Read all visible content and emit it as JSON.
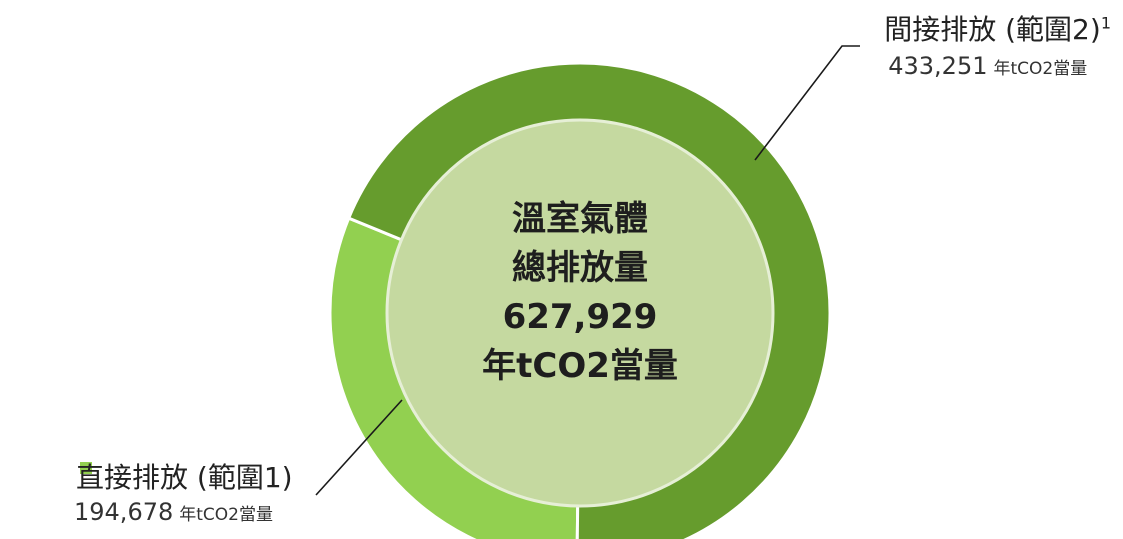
{
  "chart_data": {
    "type": "pie",
    "style": "donut",
    "slices": [
      {
        "label": "間接排放 (範圍2)",
        "superscript": "1",
        "value": 433251,
        "unit": "年tCO2當量",
        "color": "#669c2d"
      },
      {
        "label": "直接排放 (範圍1)",
        "value": 194678,
        "unit": "年tCO2當量",
        "color": "#92d050"
      }
    ],
    "center": {
      "line1": "溫室氣體",
      "line2": "總排放量",
      "total": "627,929",
      "unit": "年tCO2當量"
    },
    "center_color": "#c5d9a0"
  },
  "callouts": {
    "scope2": {
      "name": "間接排放 (範圍2)",
      "sup": "1",
      "value": "433,251",
      "unit": "年tCO2當量"
    },
    "scope1": {
      "name": "直接排放 (範圍1)",
      "value": "194,678",
      "unit": "年tCO2當量"
    }
  }
}
